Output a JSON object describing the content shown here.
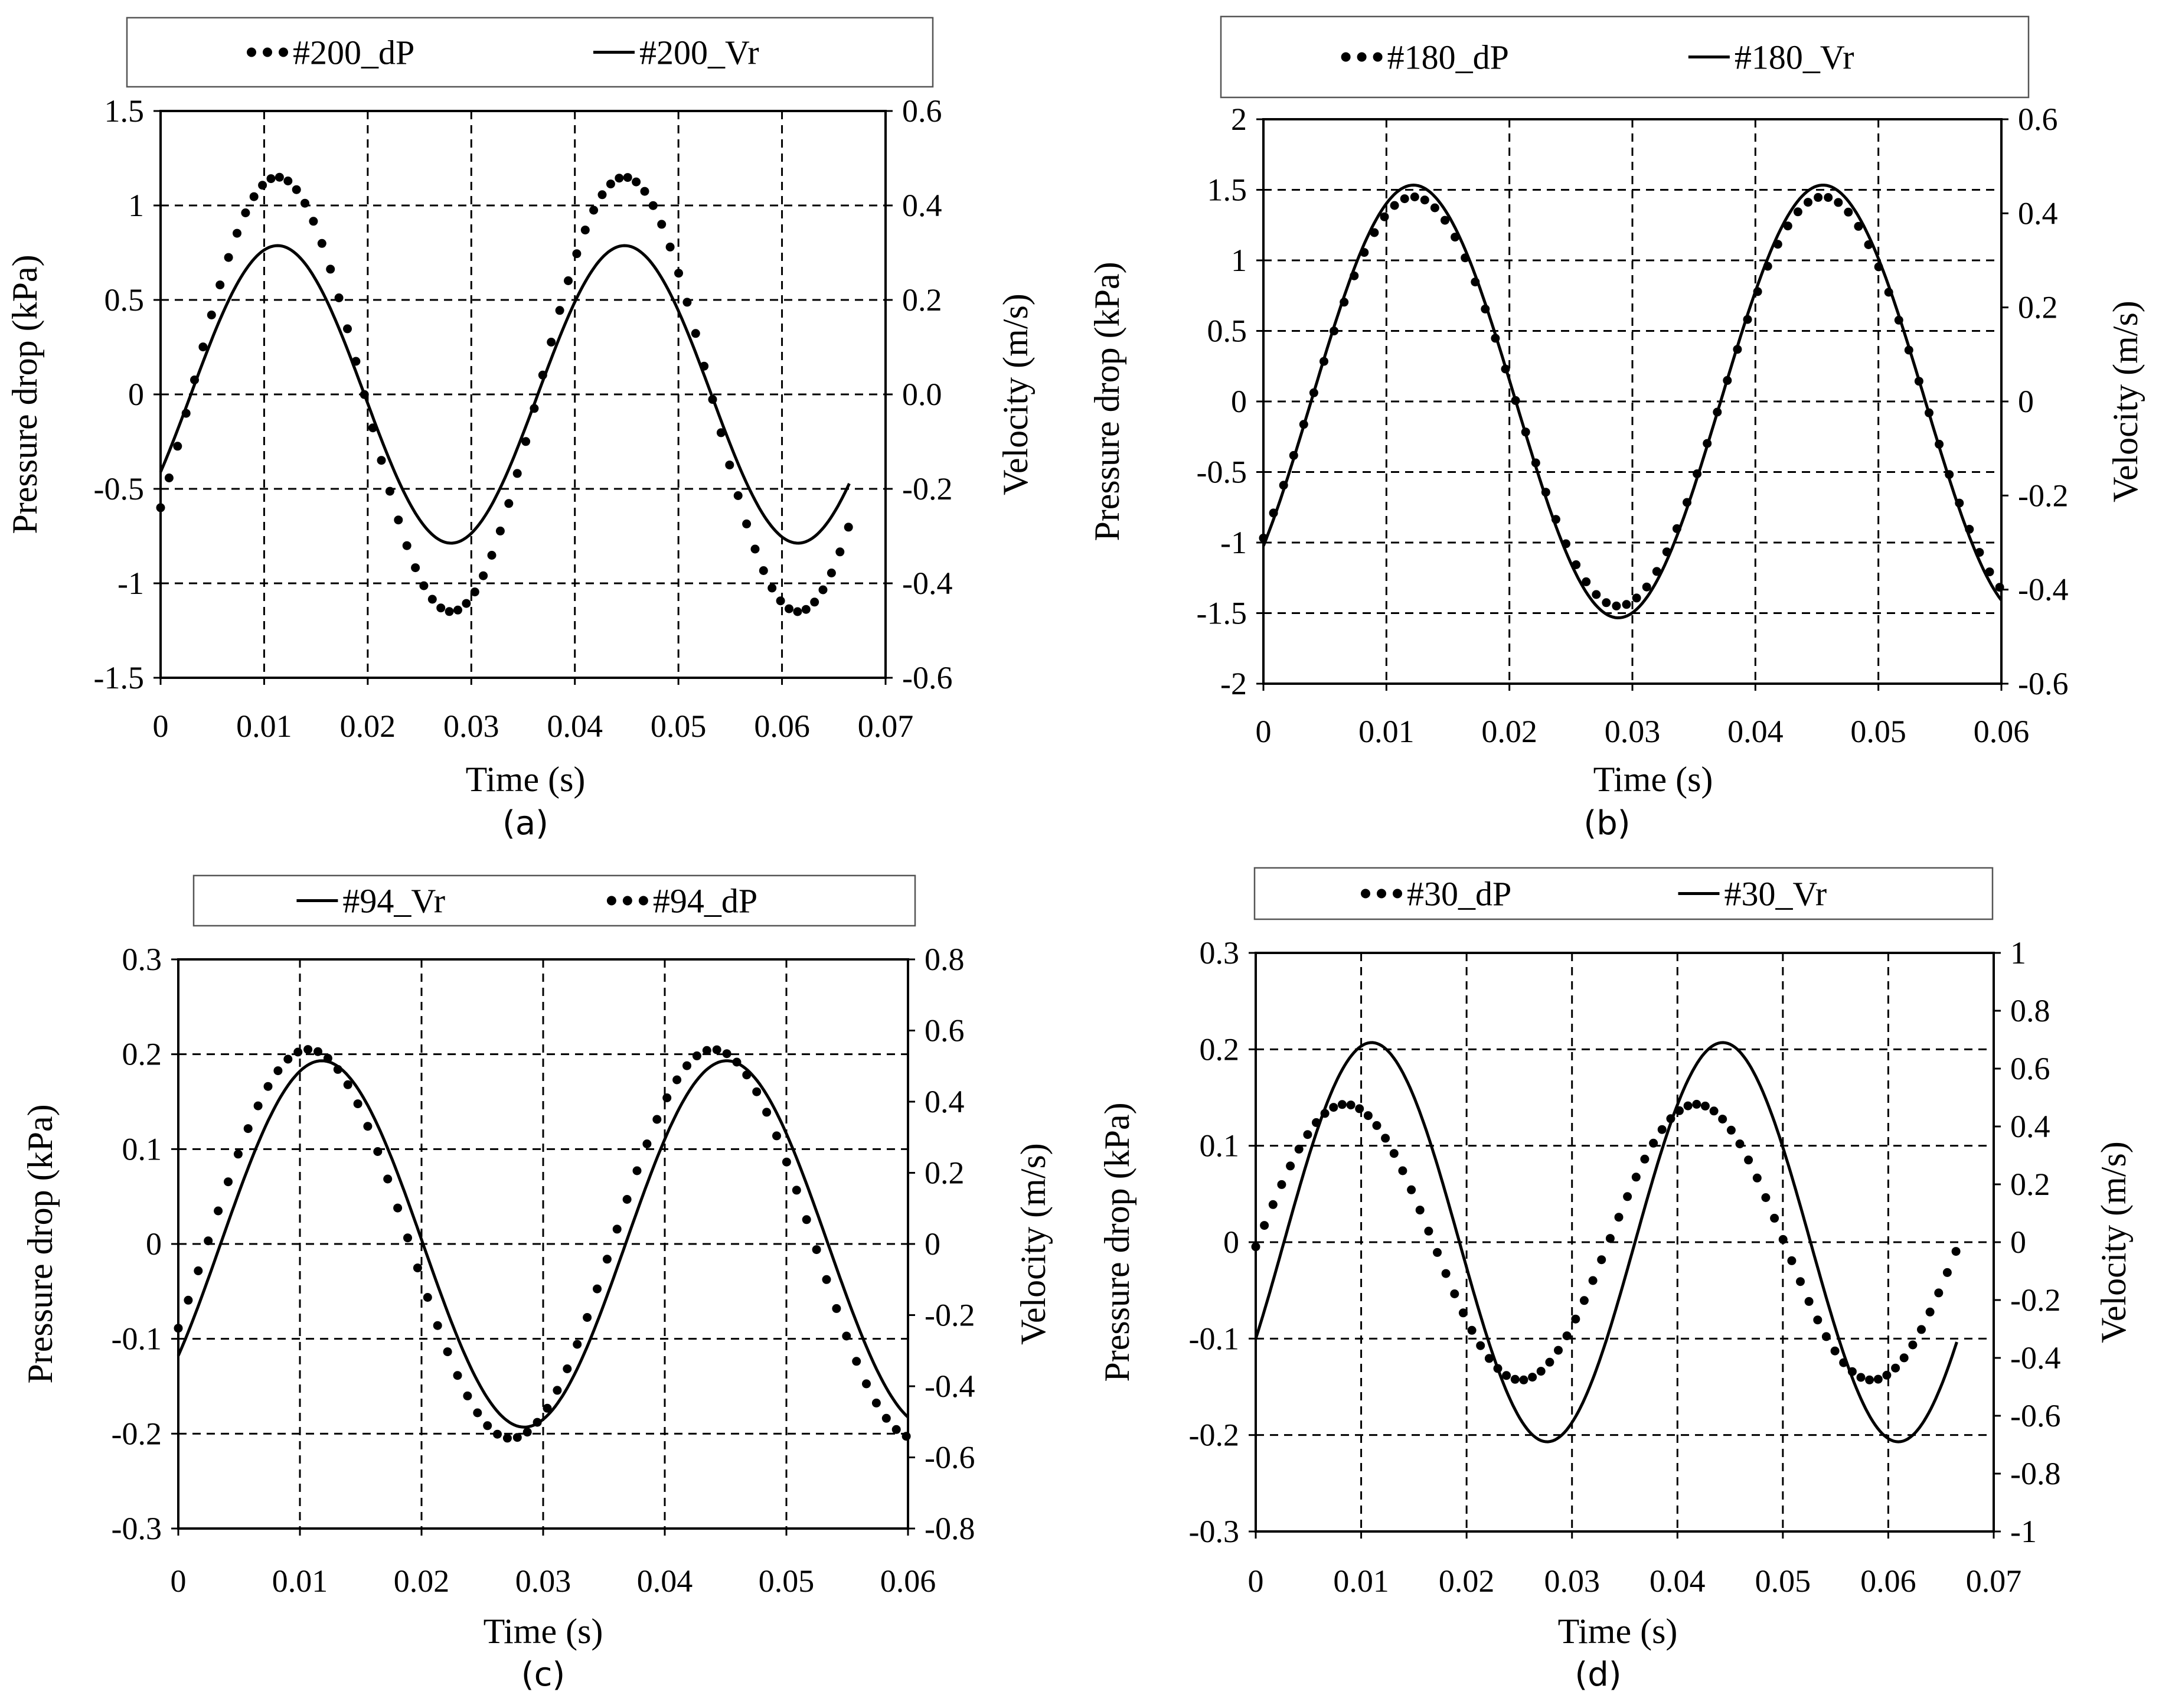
{
  "chart_data": [
    {
      "type": "line",
      "panel_label": "(a)",
      "xlabel": "Time (s)",
      "ylabel": "Pressure drop (kPa)",
      "y2label": "Velocity (m/s)",
      "xlim": [
        0,
        0.07
      ],
      "ylim": [
        -1.5,
        1.5
      ],
      "y2lim": [
        -0.6,
        0.6
      ],
      "xticks": [
        "0",
        "0.01",
        "0.02",
        "0.03",
        "0.04",
        "0.05",
        "0.06",
        "0.07"
      ],
      "yticks": [
        "-1.5",
        "-1",
        "-0.5",
        "0",
        "0.5",
        "1",
        "1.5"
      ],
      "y2ticks": [
        "-0.6",
        "-0.4",
        "-0.2",
        "0.0",
        "0.2",
        "0.4",
        "0.6"
      ],
      "grid": true,
      "legend": [
        "#200_dP",
        "#200_Vr"
      ],
      "series": [
        {
          "name": "#200_dP",
          "style": "dotted",
          "axis": "left",
          "amplitude": 1.15,
          "period": 0.0335,
          "peak_time": 0.0113,
          "t_start": 0.0,
          "t_end": 0.0665
        },
        {
          "name": "#200_Vr",
          "style": "solid",
          "axis": "right",
          "amplitude": 0.315,
          "period": 0.0335,
          "peak_time": 0.0113,
          "t_start": 0.0,
          "t_end": 0.0665
        }
      ]
    },
    {
      "type": "line",
      "panel_label": "(b)",
      "xlabel": "Time (s)",
      "ylabel": "Pressure drop (kPa)",
      "y2label": "Velocity (m/s)",
      "xlim": [
        0,
        0.06
      ],
      "ylim": [
        -2,
        2
      ],
      "y2lim": [
        -0.6,
        0.6
      ],
      "xticks": [
        "0",
        "0.01",
        "0.02",
        "0.03",
        "0.04",
        "0.05",
        "0.06"
      ],
      "yticks": [
        "-2",
        "-1.5",
        "-1",
        "-0.5",
        "0",
        "0.5",
        "1",
        "1.5",
        "2"
      ],
      "y2ticks": [
        "-0.6",
        "-0.4",
        "-0.2",
        "0",
        "0.2",
        "0.4",
        "0.6"
      ],
      "grid": true,
      "legend": [
        "#180_dP",
        "#180_Vr"
      ],
      "series": [
        {
          "name": "#180_dP",
          "style": "dotted",
          "axis": "left",
          "amplitude": 1.45,
          "period": 0.0333,
          "peak_time": 0.0122,
          "t_start": 0.0,
          "t_end": 0.06
        },
        {
          "name": "#180_Vr",
          "style": "solid",
          "axis": "right",
          "amplitude": 0.46,
          "period": 0.0333,
          "peak_time": 0.0122,
          "t_start": 0.0,
          "t_end": 0.06
        }
      ]
    },
    {
      "type": "line",
      "panel_label": "(c)",
      "xlabel": "Time (s)",
      "ylabel": "Pressure drop (kPa)",
      "y2label": "Velocity (m/s)",
      "xlim": [
        0,
        0.06
      ],
      "ylim": [
        -0.3,
        0.3
      ],
      "y2lim": [
        -0.8,
        0.8
      ],
      "xticks": [
        "0",
        "0.01",
        "0.02",
        "0.03",
        "0.04",
        "0.05",
        "0.06"
      ],
      "yticks": [
        "-0.3",
        "-0.2",
        "-0.1",
        "0",
        "0.1",
        "0.2",
        "0.3"
      ],
      "y2ticks": [
        "-0.8",
        "-0.6",
        "-0.4",
        "-0.2",
        "0",
        "0.2",
        "0.4",
        "0.6",
        "0.8"
      ],
      "grid": true,
      "legend": [
        "#94_Vr",
        "#94_dP"
      ],
      "series": [
        {
          "name": "#94_Vr",
          "style": "solid",
          "axis": "right",
          "amplitude": 0.515,
          "period": 0.0333,
          "peak_time": 0.0118,
          "t_start": 0.0,
          "t_end": 0.06
        },
        {
          "name": "#94_dP",
          "style": "dotted",
          "axis": "left",
          "amplitude": 0.205,
          "period": 0.0333,
          "peak_time": 0.0107,
          "t_start": 0.0,
          "t_end": 0.06
        }
      ]
    },
    {
      "type": "line",
      "panel_label": "(d)",
      "xlabel": "Time (s)",
      "ylabel": "Pressure drop (kPa)",
      "y2label": "Velocity (m/s)",
      "xlim": [
        0,
        0.07
      ],
      "ylim": [
        -0.3,
        0.3
      ],
      "y2lim": [
        -1,
        1
      ],
      "xticks": [
        "0",
        "0.01",
        "0.02",
        "0.03",
        "0.04",
        "0.05",
        "0.06",
        "0.07"
      ],
      "yticks": [
        "-0.3",
        "-0.2",
        "-0.1",
        "0",
        "0.1",
        "0.2",
        "0.3"
      ],
      "y2ticks": [
        "-1",
        "-0.8",
        "-0.6",
        "-0.4",
        "-0.2",
        "0",
        "0.2",
        "0.4",
        "0.6",
        "0.8",
        "1"
      ],
      "grid": true,
      "legend": [
        "#30_dP",
        "#30_Vr"
      ],
      "series": [
        {
          "name": "#30_dP",
          "style": "dotted",
          "axis": "left",
          "amplitude": 0.143,
          "period": 0.0333,
          "peak_time": 0.0085,
          "t_start": 0.0,
          "t_end": 0.0665
        },
        {
          "name": "#30_Vr",
          "style": "solid",
          "axis": "right",
          "amplitude": 0.69,
          "period": 0.0333,
          "peak_time": 0.011,
          "t_start": 0.0,
          "t_end": 0.0665
        }
      ]
    }
  ]
}
